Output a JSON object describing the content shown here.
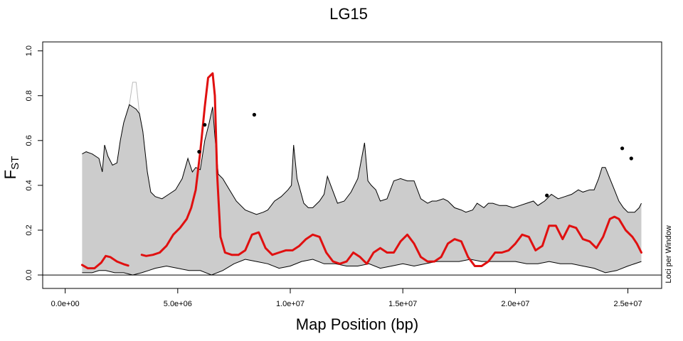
{
  "chart_data": {
    "type": "line",
    "title": "LG15",
    "xlabel": "Map Position (bp)",
    "ylabel_main": "F",
    "ylabel_sub": "ST",
    "right_label": "Loci per Window",
    "xlim": [
      -1000000,
      26500000
    ],
    "ylim": [
      -0.06,
      1.04
    ],
    "x_ticks": [
      0,
      5000000,
      10000000,
      15000000,
      20000000,
      25000000
    ],
    "x_tick_labels": [
      "0.0e+00",
      "5.0e+06",
      "1.0e+07",
      "1.5e+07",
      "2.0e+07",
      "2.5e+07"
    ],
    "y_ticks": [
      0.0,
      0.2,
      0.4,
      0.6,
      0.8,
      1.0
    ],
    "y_tick_labels": [
      "0.0",
      "0.2",
      "0.4",
      "0.6",
      "0.8",
      "1.0"
    ],
    "baseline": 0,
    "colors": {
      "band": "#cccccc",
      "outline": "#000000",
      "mean": "#e01010",
      "ghost": "#bbbbbb"
    },
    "series": [
      {
        "name": "envelope-upper",
        "x": [
          750000,
          930000,
          1200000,
          1500000,
          1650000,
          1750000,
          1900000,
          2100000,
          2300000,
          2450000,
          2600000,
          2850000,
          3000000,
          3150000,
          3300000,
          3450000,
          3650000,
          3800000,
          4000000,
          4300000,
          4600000,
          4900000,
          5200000,
          5450000,
          5550000,
          5650000,
          5800000,
          6000000,
          6200000,
          6400000,
          6550000,
          6650000,
          6800000,
          7000000,
          7300000,
          7600000,
          8000000,
          8500000,
          8800000,
          9000000,
          9300000,
          9600000,
          9900000,
          10050000,
          10150000,
          10300000,
          10600000,
          10800000,
          11000000,
          11300000,
          11500000,
          11650000,
          11800000,
          12100000,
          12400000,
          12700000,
          13000000,
          13300000,
          13450000,
          13600000,
          13800000,
          14000000,
          14300000,
          14600000,
          14900000,
          15200000,
          15500000,
          15800000,
          16100000,
          16300000,
          16500000,
          16800000,
          17000000,
          17300000,
          17600000,
          17800000,
          18100000,
          18300000,
          18600000,
          18800000,
          19000000,
          19300000,
          19600000,
          19900000,
          20200000,
          20500000,
          20800000,
          21000000,
          21300000,
          21600000,
          21900000,
          22200000,
          22500000,
          22800000,
          23000000,
          23300000,
          23500000,
          23700000,
          23850000,
          24000000,
          24200000,
          24400000,
          24600000,
          24800000,
          25000000,
          25300000,
          25500000,
          25600000
        ],
        "y": [
          0.54,
          0.55,
          0.54,
          0.52,
          0.46,
          0.58,
          0.53,
          0.49,
          0.5,
          0.6,
          0.68,
          0.76,
          0.75,
          0.74,
          0.72,
          0.64,
          0.46,
          0.37,
          0.35,
          0.34,
          0.36,
          0.38,
          0.43,
          0.52,
          0.49,
          0.46,
          0.48,
          0.47,
          0.6,
          0.68,
          0.75,
          0.62,
          0.45,
          0.43,
          0.38,
          0.33,
          0.29,
          0.27,
          0.28,
          0.29,
          0.33,
          0.35,
          0.38,
          0.4,
          0.58,
          0.43,
          0.32,
          0.3,
          0.3,
          0.33,
          0.36,
          0.44,
          0.4,
          0.32,
          0.33,
          0.37,
          0.43,
          0.59,
          0.42,
          0.4,
          0.38,
          0.33,
          0.34,
          0.42,
          0.43,
          0.42,
          0.42,
          0.34,
          0.32,
          0.33,
          0.33,
          0.34,
          0.33,
          0.3,
          0.29,
          0.28,
          0.29,
          0.32,
          0.3,
          0.32,
          0.32,
          0.31,
          0.31,
          0.3,
          0.31,
          0.32,
          0.33,
          0.31,
          0.33,
          0.36,
          0.34,
          0.35,
          0.36,
          0.38,
          0.37,
          0.38,
          0.38,
          0.43,
          0.48,
          0.48,
          0.43,
          0.38,
          0.33,
          0.3,
          0.28,
          0.28,
          0.3,
          0.32
        ]
      },
      {
        "name": "envelope-lower",
        "x": [
          750000,
          1200000,
          1500000,
          1800000,
          2200000,
          2600000,
          3000000,
          3400000,
          3700000,
          4000000,
          4500000,
          5000000,
          5500000,
          6000000,
          6500000,
          7000000,
          7500000,
          8000000,
          8500000,
          9000000,
          9500000,
          10000000,
          10500000,
          11000000,
          11500000,
          12000000,
          12500000,
          13000000,
          13500000,
          14000000,
          14500000,
          15000000,
          15500000,
          16000000,
          16500000,
          17000000,
          17500000,
          18000000,
          18500000,
          19000000,
          19500000,
          20000000,
          20500000,
          21000000,
          21500000,
          22000000,
          22500000,
          23000000,
          23500000,
          24000000,
          24500000,
          25000000,
          25600000
        ],
        "y": [
          0.01,
          0.01,
          0.02,
          0.02,
          0.01,
          0.01,
          0.0,
          0.01,
          0.02,
          0.03,
          0.04,
          0.03,
          0.02,
          0.02,
          0.0,
          0.02,
          0.05,
          0.07,
          0.06,
          0.05,
          0.03,
          0.04,
          0.06,
          0.07,
          0.05,
          0.05,
          0.04,
          0.04,
          0.05,
          0.03,
          0.04,
          0.05,
          0.04,
          0.05,
          0.06,
          0.06,
          0.06,
          0.07,
          0.06,
          0.06,
          0.06,
          0.06,
          0.05,
          0.05,
          0.06,
          0.05,
          0.05,
          0.04,
          0.03,
          0.01,
          0.02,
          0.04,
          0.06
        ]
      },
      {
        "name": "ghost-upper",
        "x": [
          2850000,
          3000000,
          3150000,
          3300000,
          3450000
        ],
        "y": [
          0.76,
          0.86,
          0.86,
          0.72,
          0.64
        ]
      },
      {
        "name": "mean-segment-1",
        "x": [
          750000,
          1000000,
          1300000,
          1600000,
          1800000,
          2000000,
          2300000,
          2600000,
          2800000
        ],
        "y": [
          0.045,
          0.03,
          0.03,
          0.055,
          0.085,
          0.08,
          0.06,
          0.048,
          0.042
        ]
      },
      {
        "name": "mean-segment-2",
        "x": [
          3400000,
          3600000,
          3900000,
          4200000,
          4500000,
          4800000,
          5100000,
          5400000,
          5600000,
          5800000,
          6000000,
          6200000,
          6350000,
          6450000,
          6550000,
          6650000,
          6750000,
          6900000,
          7100000,
          7400000,
          7700000,
          8000000,
          8300000,
          8600000,
          8900000,
          9200000,
          9500000,
          9800000,
          10100000,
          10400000,
          10700000,
          11000000,
          11300000,
          11600000,
          11900000,
          12200000,
          12500000,
          12800000,
          13100000,
          13400000,
          13700000,
          14000000,
          14300000,
          14600000,
          14900000,
          15200000,
          15500000,
          15800000,
          16100000,
          16400000,
          16700000,
          17000000,
          17300000,
          17600000,
          17900000,
          18200000,
          18500000,
          18800000,
          19100000,
          19400000,
          19700000,
          20000000,
          20300000,
          20600000,
          20900000,
          21200000,
          21500000,
          21800000,
          22100000,
          22400000,
          22700000,
          23000000,
          23300000,
          23600000,
          23900000,
          24200000,
          24400000,
          24600000,
          24900000,
          25200000,
          25400000,
          25600000
        ],
        "y": [
          0.09,
          0.085,
          0.09,
          0.1,
          0.13,
          0.18,
          0.21,
          0.25,
          0.3,
          0.38,
          0.55,
          0.75,
          0.88,
          0.89,
          0.9,
          0.8,
          0.45,
          0.17,
          0.1,
          0.09,
          0.09,
          0.11,
          0.18,
          0.19,
          0.12,
          0.09,
          0.1,
          0.11,
          0.11,
          0.13,
          0.16,
          0.18,
          0.17,
          0.1,
          0.06,
          0.05,
          0.06,
          0.1,
          0.08,
          0.05,
          0.1,
          0.12,
          0.1,
          0.1,
          0.15,
          0.18,
          0.14,
          0.08,
          0.06,
          0.06,
          0.08,
          0.14,
          0.16,
          0.15,
          0.08,
          0.04,
          0.04,
          0.06,
          0.1,
          0.1,
          0.11,
          0.14,
          0.18,
          0.17,
          0.11,
          0.13,
          0.22,
          0.22,
          0.16,
          0.22,
          0.21,
          0.16,
          0.15,
          0.12,
          0.17,
          0.25,
          0.26,
          0.25,
          0.2,
          0.17,
          0.14,
          0.1
        ]
      }
    ],
    "outlier_points": {
      "x": [
        5950000,
        6200000,
        8400000,
        21400000,
        24750000,
        25150000
      ],
      "y": [
        0.55,
        0.67,
        0.715,
        0.355,
        0.565,
        0.52
      ]
    }
  }
}
